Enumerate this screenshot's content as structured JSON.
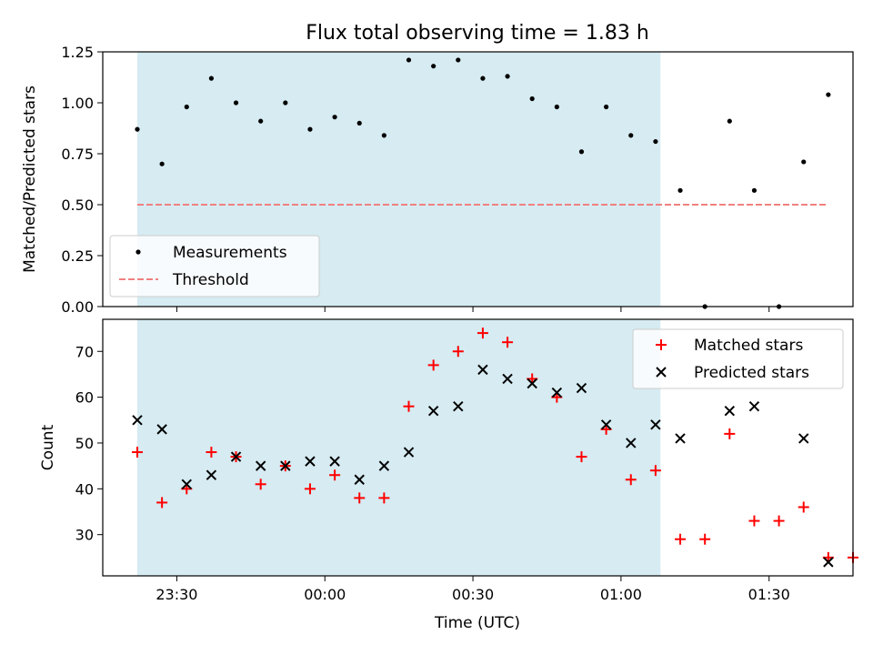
{
  "chart_data": [
    {
      "type": "scatter",
      "title": "Flux total observing time = 1.83 h",
      "ylabel": "Matched/Predicted stars",
      "xlabel": "",
      "ylim": [
        0,
        1.25
      ],
      "yticks": [
        0,
        0.25,
        0.5,
        0.75,
        1.0,
        1.25
      ],
      "ytick_labels": [
        "0.00",
        "0.25",
        "0.50",
        "0.75",
        "1.00",
        "1.25"
      ],
      "xlim": [
        "23:15",
        "01:47"
      ],
      "xticks": [
        "23:30",
        "00:00",
        "00:30",
        "01:00",
        "01:30"
      ],
      "xtick_labels": [
        "",
        "",
        "",
        "",
        ""
      ],
      "shaded_span": [
        "23:22",
        "01:08"
      ],
      "legend_position": "lower-left",
      "series": [
        {
          "name": "Measurements",
          "kind": "points",
          "color": "#000000",
          "x": [
            "23:22",
            "23:27",
            "23:32",
            "23:37",
            "23:42",
            "23:47",
            "23:52",
            "23:57",
            "00:02",
            "00:07",
            "00:12",
            "00:17",
            "00:22",
            "00:27",
            "00:32",
            "00:37",
            "00:42",
            "00:47",
            "00:52",
            "00:57",
            "01:02",
            "01:07",
            "01:12",
            "01:17",
            "01:22",
            "01:27",
            "01:32",
            "01:37",
            "01:42"
          ],
          "y": [
            0.87,
            0.7,
            0.98,
            1.12,
            1.0,
            0.91,
            1.0,
            0.87,
            0.93,
            0.9,
            0.84,
            1.21,
            1.18,
            1.21,
            1.12,
            1.13,
            1.02,
            0.98,
            0.76,
            0.98,
            0.84,
            0.81,
            0.57,
            0.0,
            0.91,
            0.57,
            0.0,
            0.71,
            1.04
          ]
        },
        {
          "name": "Threshold",
          "kind": "dashed-line",
          "color": "#f08080",
          "x": [
            "23:22",
            "01:42"
          ],
          "y": [
            0.5,
            0.5
          ]
        }
      ]
    },
    {
      "type": "scatter",
      "title": "",
      "ylabel": "Count",
      "xlabel": "Time (UTC)",
      "ylim": [
        21,
        77
      ],
      "yticks": [
        30,
        40,
        50,
        60,
        70
      ],
      "ytick_labels": [
        "30",
        "40",
        "50",
        "60",
        "70"
      ],
      "xlim": [
        "23:15",
        "01:47"
      ],
      "xticks": [
        "23:30",
        "00:00",
        "00:30",
        "01:00",
        "01:30"
      ],
      "xtick_labels": [
        "23:30",
        "00:00",
        "00:30",
        "01:00",
        "01:30"
      ],
      "shaded_span": [
        "23:22",
        "01:08"
      ],
      "legend_position": "upper-right",
      "series": [
        {
          "name": "Matched stars",
          "marker": "plus",
          "color": "#ff0000",
          "x": [
            "23:22",
            "23:27",
            "23:32",
            "23:37",
            "23:42",
            "23:47",
            "23:52",
            "23:57",
            "00:02",
            "00:07",
            "00:12",
            "00:17",
            "00:22",
            "00:27",
            "00:32",
            "00:37",
            "00:42",
            "00:47",
            "00:52",
            "00:57",
            "01:02",
            "01:07",
            "01:12",
            "01:17",
            "01:22",
            "01:27",
            "01:32",
            "01:37",
            "01:42",
            "01:47"
          ],
          "y": [
            48,
            37,
            40,
            48,
            47,
            41,
            45,
            40,
            43,
            38,
            38,
            58,
            67,
            70,
            74,
            72,
            64,
            60,
            47,
            53,
            42,
            44,
            29,
            29,
            52,
            33,
            33,
            36,
            25,
            25
          ]
        },
        {
          "name": "Predicted stars",
          "marker": "x",
          "color": "#000000",
          "x": [
            "23:22",
            "23:27",
            "23:32",
            "23:37",
            "23:42",
            "23:47",
            "23:52",
            "23:57",
            "00:02",
            "00:07",
            "00:12",
            "00:17",
            "00:22",
            "00:27",
            "00:32",
            "00:37",
            "00:42",
            "00:47",
            "00:52",
            "00:57",
            "01:02",
            "01:07",
            "01:12",
            "01:22",
            "01:27",
            "01:37",
            "01:42"
          ],
          "y": [
            55,
            53,
            41,
            43,
            47,
            45,
            45,
            46,
            46,
            42,
            45,
            48,
            57,
            58,
            66,
            64,
            63,
            61,
            62,
            54,
            50,
            54,
            51,
            57,
            58,
            51,
            24
          ]
        }
      ]
    }
  ]
}
